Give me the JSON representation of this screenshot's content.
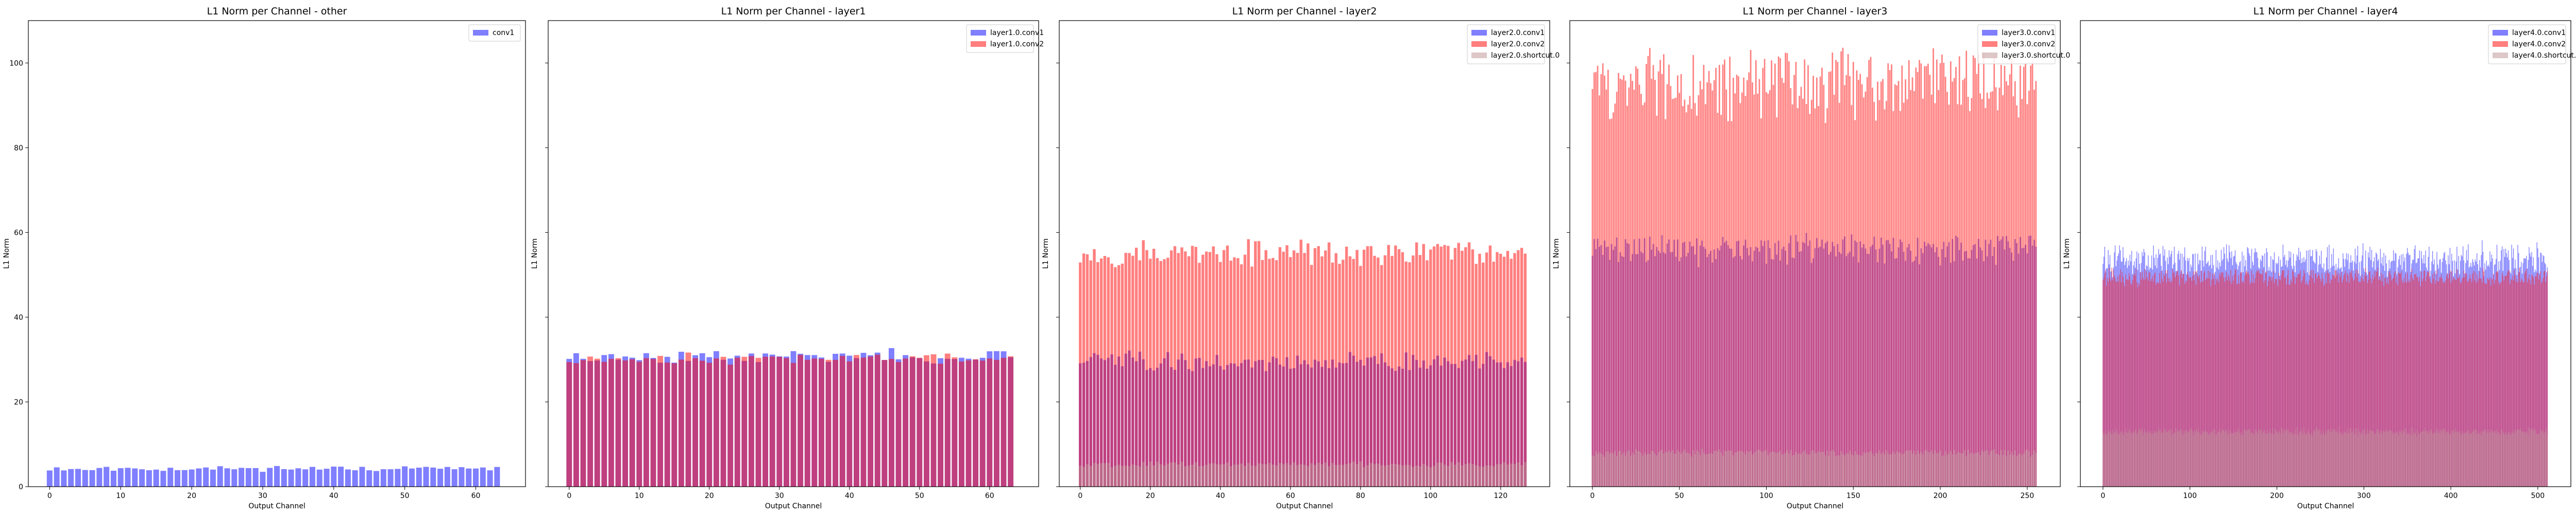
{
  "chart_data": [
    {
      "type": "bar",
      "title": "L1 Norm per Channel - other",
      "xlabel": "Output Channel",
      "ylabel": "L1 Norm",
      "xlim": [
        -3,
        67
      ],
      "ylim": [
        0,
        110
      ],
      "xticks": [
        0,
        10,
        20,
        30,
        40,
        50,
        60
      ],
      "yticks": [
        0,
        20,
        40,
        60,
        80,
        100
      ],
      "show_y_ticklabels": true,
      "grid": false,
      "legend_position": "top-right",
      "channels": 64,
      "series": [
        {
          "name": "conv1",
          "color": "#0000ff",
          "opacity": 0.5,
          "bar_width": 0.8,
          "base": 4.3,
          "amp": 0.5,
          "spread": 0.4,
          "seed": 11
        }
      ]
    },
    {
      "type": "bar",
      "title": "L1 Norm per Channel - layer1",
      "xlabel": "Output Channel",
      "ylabel": "L1 Norm",
      "xlim": [
        -3,
        67
      ],
      "ylim": [
        0,
        110
      ],
      "xticks": [
        0,
        10,
        20,
        30,
        40,
        50,
        60
      ],
      "yticks": [
        0,
        20,
        40,
        60,
        80,
        100
      ],
      "show_y_ticklabels": false,
      "grid": false,
      "legend_position": "top-right",
      "channels": 64,
      "series": [
        {
          "name": "layer1.0.conv1",
          "color": "#0000ff",
          "opacity": 0.5,
          "bar_width": 0.8,
          "base": 30.8,
          "amp": 1.2,
          "spread": 1.0,
          "seed": 23
        },
        {
          "name": "layer1.0.conv2",
          "color": "#ff0000",
          "opacity": 0.5,
          "bar_width": 0.8,
          "base": 30.3,
          "amp": 1.0,
          "spread": 0.9,
          "seed": 37
        }
      ]
    },
    {
      "type": "bar",
      "title": "L1 Norm per Channel - layer2",
      "xlabel": "Output Channel",
      "ylabel": "L1 Norm",
      "xlim": [
        -6,
        134
      ],
      "ylim": [
        0,
        110
      ],
      "xticks": [
        0,
        20,
        40,
        60,
        80,
        100,
        120
      ],
      "yticks": [
        0,
        20,
        40,
        60,
        80,
        100
      ],
      "show_y_ticklabels": false,
      "grid": false,
      "legend_position": "top-right",
      "channels": 128,
      "series": [
        {
          "name": "layer2.0.conv1",
          "color": "#0000ff",
          "opacity": 0.5,
          "bar_width": 0.8,
          "base": 29.5,
          "amp": 2.0,
          "spread": 1.6,
          "seed": 41
        },
        {
          "name": "layer2.0.conv2",
          "color": "#ff0000",
          "opacity": 0.5,
          "bar_width": 0.8,
          "base": 55.0,
          "amp": 2.6,
          "spread": 1.8,
          "seed": 53
        },
        {
          "name": "layer2.0.shortcut.0",
          "color": "#bc8f8f",
          "opacity": 0.5,
          "bar_width": 0.8,
          "base": 5.3,
          "amp": 0.5,
          "spread": 0.4,
          "seed": 67
        }
      ]
    },
    {
      "type": "bar",
      "title": "L1 Norm per Channel - layer3",
      "xlabel": "Output Channel",
      "ylabel": "L1 Norm",
      "xlim": [
        -13,
        269
      ],
      "ylim": [
        0,
        110
      ],
      "xticks": [
        0,
        50,
        100,
        150,
        200,
        250
      ],
      "yticks": [
        0,
        20,
        40,
        60,
        80,
        100
      ],
      "show_y_ticklabels": false,
      "grid": false,
      "legend_position": "top-right",
      "channels": 256,
      "series": [
        {
          "name": "layer3.0.conv1",
          "color": "#0000ff",
          "opacity": 0.5,
          "bar_width": 0.8,
          "base": 56.0,
          "amp": 3.0,
          "spread": 2.2,
          "seed": 71
        },
        {
          "name": "layer3.0.conv2",
          "color": "#ff0000",
          "opacity": 0.5,
          "bar_width": 0.8,
          "base": 95.0,
          "amp": 7.0,
          "spread": 4.5,
          "seed": 83
        },
        {
          "name": "layer3.0.shortcut.0",
          "color": "#bc8f8f",
          "opacity": 0.5,
          "bar_width": 0.8,
          "base": 8.0,
          "amp": 0.7,
          "spread": 0.4,
          "seed": 97
        }
      ]
    },
    {
      "type": "bar",
      "title": "L1 Norm per Channel - layer4",
      "xlabel": "Output Channel",
      "ylabel": "L1 Norm",
      "xlim": [
        -26,
        538
      ],
      "ylim": [
        0,
        110
      ],
      "xticks": [
        0,
        100,
        200,
        300,
        400,
        500
      ],
      "yticks": [
        0,
        20,
        40,
        60,
        80,
        100
      ],
      "show_y_ticklabels": false,
      "grid": false,
      "legend_position": "top-right",
      "channels": 512,
      "series": [
        {
          "name": "layer4.0.conv1",
          "color": "#0000ff",
          "opacity": 0.5,
          "bar_width": 0.8,
          "base": 53.5,
          "amp": 3.2,
          "spread": 2.4,
          "seed": 101
        },
        {
          "name": "layer4.0.conv2",
          "color": "#ff0000",
          "opacity": 0.5,
          "bar_width": 0.8,
          "base": 49.5,
          "amp": 1.8,
          "spread": 1.0,
          "seed": 113
        },
        {
          "name": "layer4.0.shortcut.0",
          "color": "#bc8f8f",
          "opacity": 0.5,
          "bar_width": 0.8,
          "base": 13.0,
          "amp": 0.8,
          "spread": 0.5,
          "seed": 127
        }
      ]
    }
  ]
}
